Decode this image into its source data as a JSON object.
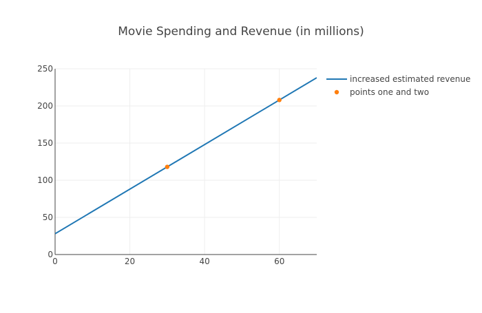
{
  "chart_data": {
    "type": "line",
    "title": "Movie Spending and Revenue (in millions)",
    "xlabel": "",
    "ylabel": "",
    "xlim": [
      0,
      70
    ],
    "ylim": [
      0,
      250
    ],
    "x_ticks": [
      0,
      20,
      40,
      60
    ],
    "y_ticks": [
      0,
      50,
      100,
      150,
      200,
      250
    ],
    "grid": true,
    "legend_position": "top-right outside",
    "series": [
      {
        "name": "increased estimated revenue",
        "type": "line",
        "color": "#1f77b4",
        "x": [
          0,
          70
        ],
        "y": [
          28,
          238
        ]
      },
      {
        "name": "points one and two",
        "type": "scatter",
        "color": "#ff7f0e",
        "x": [
          30,
          60
        ],
        "y": [
          118,
          208
        ]
      }
    ]
  }
}
